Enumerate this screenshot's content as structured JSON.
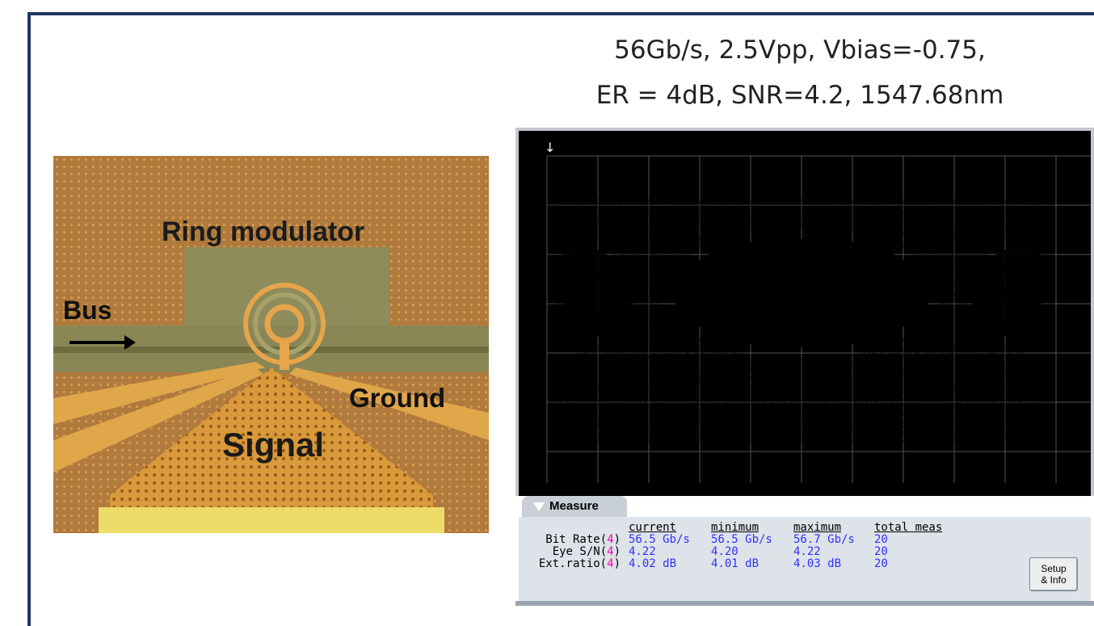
{
  "title": {
    "line1": "56Gb/s, 2.5Vpp, Vbias=-0.75,",
    "line2": "ER = 4dB, SNR=4.2, 1547.68nm"
  },
  "photo": {
    "labels": {
      "ring": "Ring modulator",
      "bus": "Bus",
      "ground": "Ground",
      "signal": "Signal"
    }
  },
  "scope": {
    "marker": "↓",
    "measure": {
      "tab_label": "Measure",
      "close_glyph": "✕",
      "headers": [
        "current",
        "minimum",
        "maximum",
        "total meas"
      ],
      "rows": [
        {
          "label": "Bit Rate(",
          "channel": "4",
          "current": "56.5 Gb/s",
          "minimum": "56.5 Gb/s",
          "maximum": "56.7 Gb/s",
          "total": "20"
        },
        {
          "label": "Eye S/N(",
          "channel": "4",
          "current": "4.22",
          "minimum": "4.20",
          "maximum": "4.22",
          "total": "20"
        },
        {
          "label": "Ext.ratio(",
          "channel": "4",
          "current": "4.02 dB",
          "minimum": "4.01 dB",
          "maximum": "4.03 dB",
          "total": "20"
        }
      ],
      "setup_label_1": "Setup",
      "setup_label_2": "& Info"
    }
  },
  "colors": {
    "frame": "#1f3864",
    "eye": "#ff66d9",
    "values": "#3030ff",
    "channel": "#ff00aa"
  }
}
